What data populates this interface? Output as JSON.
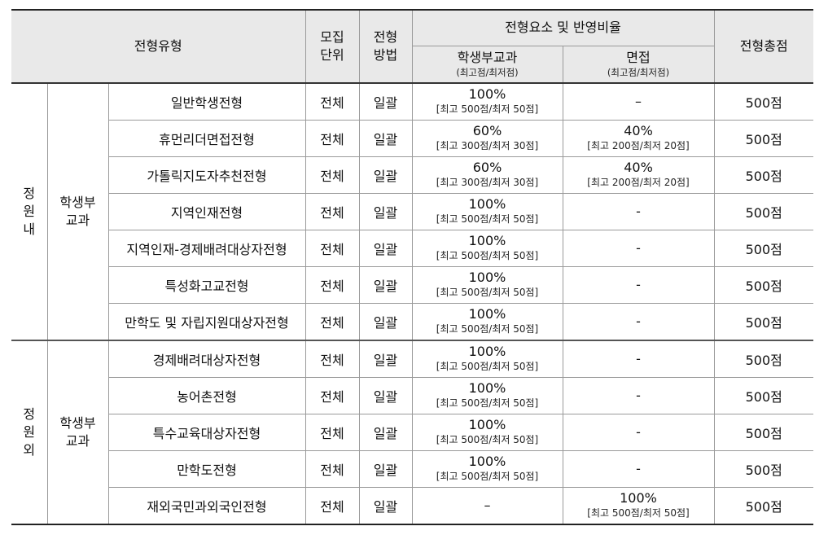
{
  "headers": {
    "type": "전형유형",
    "unit_l1": "모집",
    "unit_l2": "단위",
    "method_l1": "전형",
    "method_l2": "방법",
    "elements": "전형요소 및 반영비율",
    "record": "학생부교과",
    "record_sub": "(최고점/최저점)",
    "interview": "면접",
    "interview_sub": "(최고점/최저점)",
    "total": "전형총점"
  },
  "groups": [
    {
      "label_chars": [
        "정",
        "원",
        "내"
      ],
      "subgroup_l1": "학생부",
      "subgroup_l2": "교과"
    },
    {
      "label_chars": [
        "정",
        "원",
        "외"
      ],
      "subgroup_l1": "학생부",
      "subgroup_l2": "교과"
    }
  ],
  "rows": [
    {
      "name": "일반학생전형",
      "unit": "전체",
      "method": "일괄",
      "record_pct": "100%",
      "record_range": "[최고 500점/최저 50점]",
      "interview_pct": "–",
      "interview_range": "",
      "total": "500점"
    },
    {
      "name": "휴먼리더면접전형",
      "unit": "전체",
      "method": "일괄",
      "record_pct": "60%",
      "record_range": "[최고 300점/최저 30점]",
      "interview_pct": "40%",
      "interview_range": "[최고 200점/최저 20점]",
      "total": "500점"
    },
    {
      "name": "가톨릭지도자추천전형",
      "unit": "전체",
      "method": "일괄",
      "record_pct": "60%",
      "record_range": "[최고 300점/최저 30점]",
      "interview_pct": "40%",
      "interview_range": "[최고 200점/최저 20점]",
      "total": "500점"
    },
    {
      "name": "지역인재전형",
      "unit": "전체",
      "method": "일괄",
      "record_pct": "100%",
      "record_range": "[최고 500점/최저 50점]",
      "interview_pct": "-",
      "interview_range": "",
      "total": "500점"
    },
    {
      "name": "지역인재-경제배려대상자전형",
      "unit": "전체",
      "method": "일괄",
      "record_pct": "100%",
      "record_range": "[최고 500점/최저 50점]",
      "interview_pct": "-",
      "interview_range": "",
      "total": "500점"
    },
    {
      "name": "특성화고교전형",
      "unit": "전체",
      "method": "일괄",
      "record_pct": "100%",
      "record_range": "[최고 500점/최저 50점]",
      "interview_pct": "-",
      "interview_range": "",
      "total": "500점"
    },
    {
      "name": "만학도 및 자립지원대상자전형",
      "unit": "전체",
      "method": "일괄",
      "record_pct": "100%",
      "record_range": "[최고 500점/최저 50점]",
      "interview_pct": "-",
      "interview_range": "",
      "total": "500점"
    },
    {
      "name": "경제배려대상자전형",
      "unit": "전체",
      "method": "일괄",
      "record_pct": "100%",
      "record_range": "[최고 500점/최저 50점]",
      "interview_pct": "-",
      "interview_range": "",
      "total": "500점"
    },
    {
      "name": "농어촌전형",
      "unit": "전체",
      "method": "일괄",
      "record_pct": "100%",
      "record_range": "[최고 500점/최저 50점]",
      "interview_pct": "-",
      "interview_range": "",
      "total": "500점"
    },
    {
      "name": "특수교육대상자전형",
      "unit": "전체",
      "method": "일괄",
      "record_pct": "100%",
      "record_range": "[최고 500점/최저 50점]",
      "interview_pct": "-",
      "interview_range": "",
      "total": "500점"
    },
    {
      "name": "만학도전형",
      "unit": "전체",
      "method": "일괄",
      "record_pct": "100%",
      "record_range": "[최고 500점/최저 50점]",
      "interview_pct": "-",
      "interview_range": "",
      "total": "500점"
    },
    {
      "name": "재외국민과외국인전형",
      "unit": "전체",
      "method": "일괄",
      "record_pct": "–",
      "record_range": "",
      "interview_pct": "100%",
      "interview_range": "[최고 500점/최저 50점]",
      "total": "500점"
    }
  ]
}
